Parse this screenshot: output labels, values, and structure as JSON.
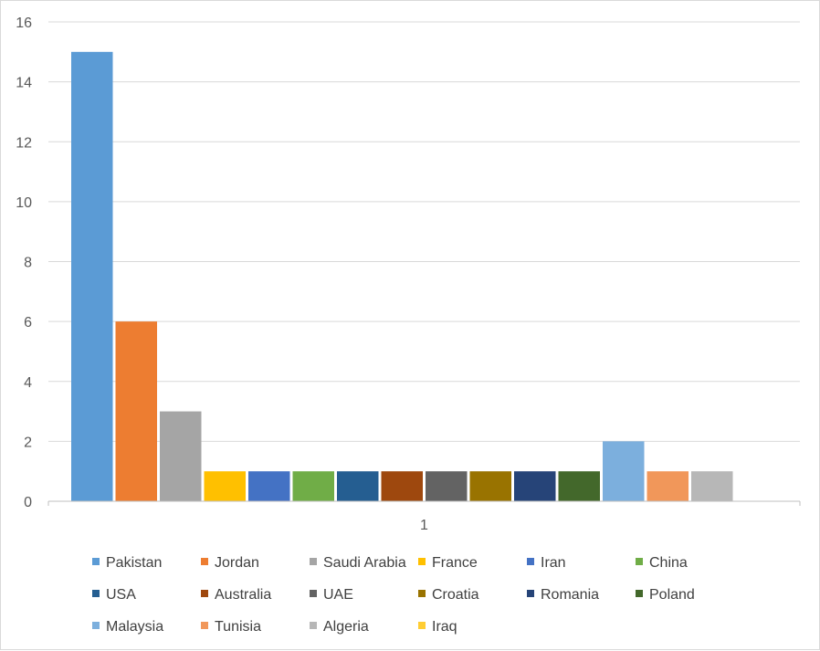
{
  "chart_data": {
    "type": "bar",
    "categories": [
      "1"
    ],
    "ylim": [
      0,
      16
    ],
    "yticks": [
      0,
      2,
      4,
      6,
      8,
      10,
      12,
      14,
      16
    ],
    "grid": true,
    "legend_position": "bottom",
    "series": [
      {
        "name": "Pakistan",
        "values": [
          15
        ],
        "color": "#5b9bd5"
      },
      {
        "name": "Jordan",
        "values": [
          6
        ],
        "color": "#ed7d31"
      },
      {
        "name": "Saudi Arabia",
        "values": [
          3
        ],
        "color": "#a5a5a5"
      },
      {
        "name": "France",
        "values": [
          1
        ],
        "color": "#ffc000"
      },
      {
        "name": "Iran",
        "values": [
          1
        ],
        "color": "#4472c4"
      },
      {
        "name": "China",
        "values": [
          1
        ],
        "color": "#70ad47"
      },
      {
        "name": "USA",
        "values": [
          1
        ],
        "color": "#255e91"
      },
      {
        "name": "Australia",
        "values": [
          1
        ],
        "color": "#9e480e"
      },
      {
        "name": "UAE",
        "values": [
          1
        ],
        "color": "#636363"
      },
      {
        "name": "Croatia",
        "values": [
          1
        ],
        "color": "#997300"
      },
      {
        "name": "Romania",
        "values": [
          1
        ],
        "color": "#264478"
      },
      {
        "name": "Poland",
        "values": [
          1
        ],
        "color": "#43682b"
      },
      {
        "name": "Malaysia",
        "values": [
          2
        ],
        "color": "#7cafdd"
      },
      {
        "name": "Tunisia",
        "values": [
          1
        ],
        "color": "#f1975a"
      },
      {
        "name": "Algeria",
        "values": [
          1
        ],
        "color": "#b7b7b7"
      },
      {
        "name": "Iraq",
        "values": [
          0
        ],
        "color": "#ffcd33"
      }
    ]
  }
}
